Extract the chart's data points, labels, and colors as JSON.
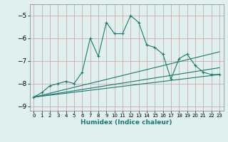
{
  "xlabel": "Humidex (Indice chaleur)",
  "ylabel": "",
  "bg_color": "#dff0ee",
  "line_color": "#1a7a6e",
  "xlim": [
    -0.5,
    23.5
  ],
  "ylim": [
    -9.2,
    -4.5
  ],
  "yticks": [
    -9,
    -8,
    -7,
    -6,
    -5
  ],
  "xticks": [
    0,
    1,
    2,
    3,
    4,
    5,
    6,
    7,
    8,
    9,
    10,
    11,
    12,
    13,
    14,
    15,
    16,
    17,
    18,
    19,
    20,
    21,
    22,
    23
  ],
  "series": [
    {
      "x": [
        0,
        1,
        2,
        3,
        4,
        5,
        6,
        7,
        8,
        9,
        10,
        11,
        12,
        13,
        14,
        15,
        16,
        17,
        18,
        19,
        20,
        21,
        22,
        23
      ],
      "y": [
        -8.6,
        -8.4,
        -8.1,
        -8.0,
        -7.9,
        -8.0,
        -7.5,
        -6.0,
        -6.8,
        -5.3,
        -5.8,
        -5.8,
        -5.0,
        -5.3,
        -6.3,
        -6.4,
        -6.7,
        -7.8,
        -6.9,
        -6.7,
        -7.2,
        -7.5,
        -7.6,
        -7.6
      ],
      "marker": true,
      "linestyle": "-"
    },
    {
      "x": [
        0,
        23
      ],
      "y": [
        -8.6,
        -7.6
      ],
      "marker": false,
      "linestyle": "-"
    },
    {
      "x": [
        0,
        23
      ],
      "y": [
        -8.6,
        -7.3
      ],
      "marker": false,
      "linestyle": "-"
    },
    {
      "x": [
        0,
        23
      ],
      "y": [
        -8.6,
        -6.6
      ],
      "marker": false,
      "linestyle": "-"
    }
  ]
}
